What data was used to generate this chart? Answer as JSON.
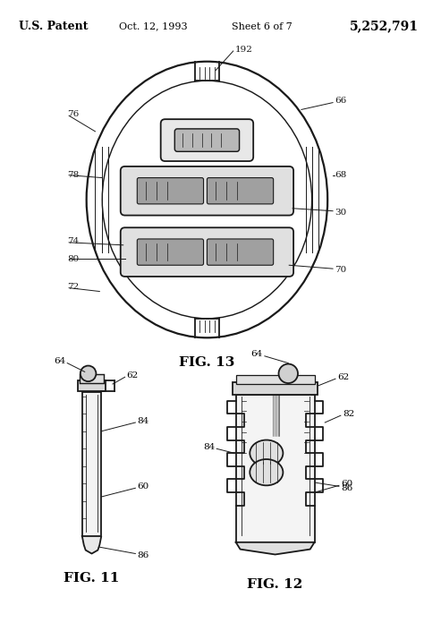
{
  "header_left": "U.S. Patent",
  "header_mid": "Oct. 12, 1993",
  "header_sheet": "Sheet 6 of 7",
  "header_right": "5,252,791",
  "fig13_label": "FIG. 13",
  "fig11_label": "FIG. 11",
  "fig12_label": "FIG. 12",
  "bg_color": "#ffffff",
  "line_color": "#1a1a1a"
}
